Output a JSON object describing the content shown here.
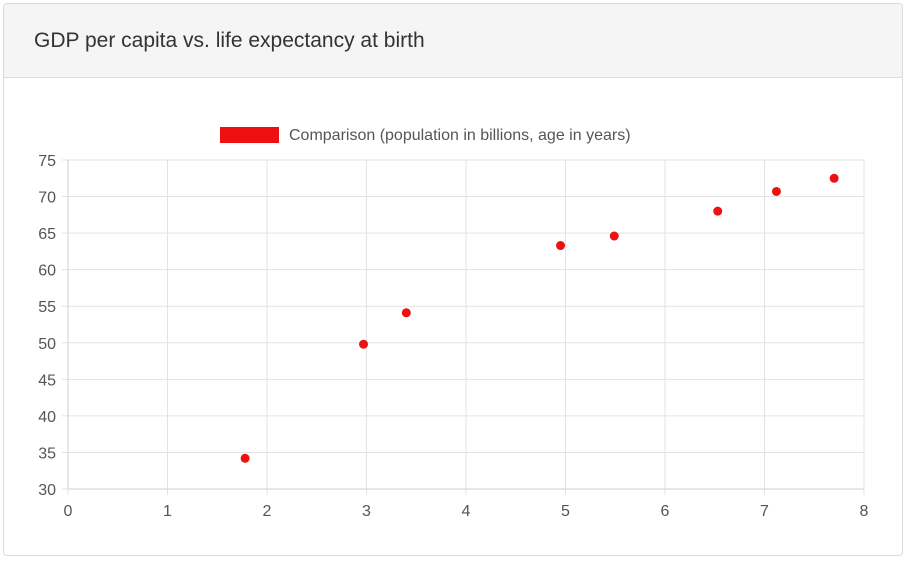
{
  "card": {
    "title": "GDP per capita vs. life expectancy at birth"
  },
  "chart_data": {
    "type": "scatter",
    "title": "",
    "xlabel": "",
    "ylabel": "",
    "xlim": [
      0,
      8
    ],
    "ylim": [
      30,
      75
    ],
    "x_ticks": [
      0,
      1,
      2,
      3,
      4,
      5,
      6,
      7,
      8
    ],
    "y_ticks": [
      30,
      35,
      40,
      45,
      50,
      55,
      60,
      65,
      70,
      75
    ],
    "grid": true,
    "legend": "top-center",
    "series": [
      {
        "name": "Comparison (population in billions, age in years)",
        "color": "#ee1111",
        "points": [
          {
            "x": 1.78,
            "y": 34.2
          },
          {
            "x": 2.97,
            "y": 49.8
          },
          {
            "x": 3.4,
            "y": 54.1
          },
          {
            "x": 4.95,
            "y": 63.3
          },
          {
            "x": 5.49,
            "y": 64.6
          },
          {
            "x": 6.53,
            "y": 68.0
          },
          {
            "x": 7.12,
            "y": 70.7
          },
          {
            "x": 7.7,
            "y": 72.5
          }
        ]
      }
    ]
  }
}
